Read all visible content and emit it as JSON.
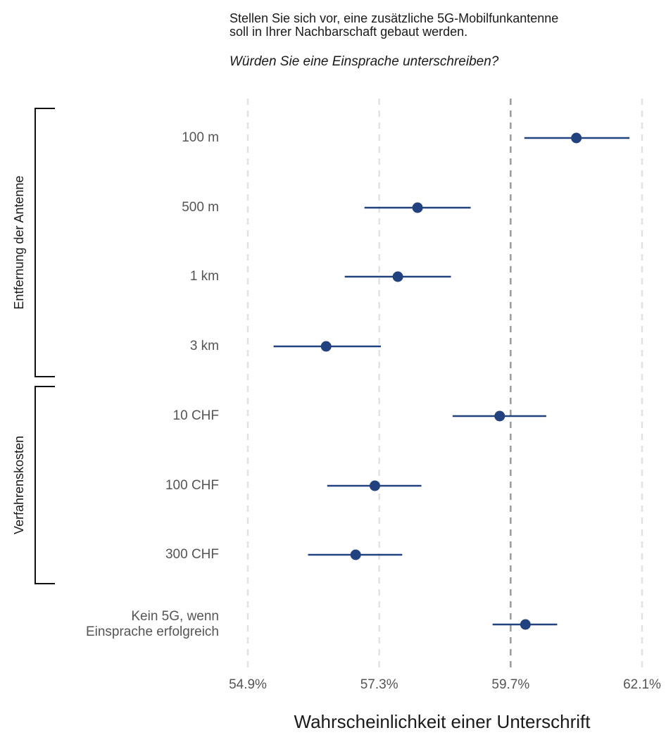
{
  "title_lines": [
    "Stellen Sie sich vor, eine zusätzliche 5G-Mobilfunkantenne",
    "soll in Ihrer Nachbarschaft gebaut werden."
  ],
  "subtitle": "Würden Sie eine Einsprache unterschreiben?",
  "colors": {
    "point": "#22427f",
    "grid": "#e2e2e2",
    "reference_line": "#9b9b9b",
    "text": "#555555"
  },
  "chart_data": {
    "type": "scatter",
    "title": "Stellen Sie sich vor, eine zusätzliche 5G-Mobilfunkantenne soll in Ihrer Nachbarschaft gebaut werden.",
    "subtitle": "Würden Sie eine Einsprache unterschreiben?",
    "xlabel": "Wahrscheinlichkeit einer Unterschrift",
    "ylabel": "",
    "xlim": [
      54.9,
      62.1
    ],
    "x_ticks": [
      54.9,
      57.3,
      59.7,
      62.1
    ],
    "x_tick_labels": [
      "54.9%",
      "57.3%",
      "59.7%",
      "62.1%"
    ],
    "reference_value": 59.7,
    "grid": true,
    "legend": "none",
    "groups": [
      {
        "label": "Entfernung der Antenne",
        "items": [
          "100 m",
          "500 m",
          "1 km",
          "3 km"
        ]
      },
      {
        "label": "Verfahrenskosten",
        "items": [
          "10 CHF",
          "100 CHF",
          "300 CHF"
        ]
      }
    ],
    "categories": [
      "100 m",
      "500 m",
      "1 km",
      "3 km",
      "10 CHF",
      "100 CHF",
      "300 CHF",
      "Kein 5G, wenn Einsprache erfolgreich"
    ],
    "category_lines": [
      [
        "100 m"
      ],
      [
        "500 m"
      ],
      [
        "1 km"
      ],
      [
        "3 km"
      ],
      [
        "10 CHF"
      ],
      [
        "100 CHF"
      ],
      [
        "300 CHF"
      ],
      [
        "Kein 5G, wenn",
        "Einsprache erfolgreich"
      ]
    ],
    "points": [
      {
        "label": "100 m",
        "estimate": 60.9,
        "lower": 59.95,
        "upper": 61.87
      },
      {
        "label": "500 m",
        "estimate": 58.0,
        "lower": 57.03,
        "upper": 58.97
      },
      {
        "label": "1 km",
        "estimate": 57.64,
        "lower": 56.67,
        "upper": 58.61
      },
      {
        "label": "3 km",
        "estimate": 56.33,
        "lower": 55.37,
        "upper": 57.33
      },
      {
        "label": "10 CHF",
        "estimate": 59.5,
        "lower": 58.64,
        "upper": 60.35
      },
      {
        "label": "100 CHF",
        "estimate": 57.22,
        "lower": 56.35,
        "upper": 58.07
      },
      {
        "label": "300 CHF",
        "estimate": 56.87,
        "lower": 56.0,
        "upper": 57.72
      },
      {
        "label": "Kein 5G, wenn Einsprache erfolgreich",
        "estimate": 59.97,
        "lower": 59.37,
        "upper": 60.55
      }
    ]
  }
}
